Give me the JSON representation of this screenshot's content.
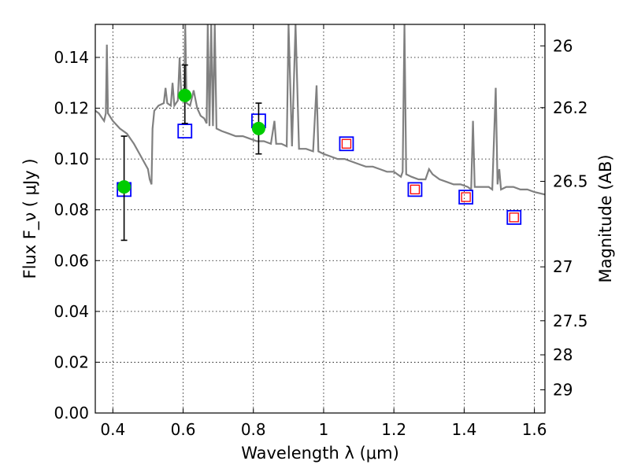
{
  "chart_data": {
    "type": "scatter",
    "title": "",
    "xlabel": "Wavelength  λ (μm)",
    "ylabel_left": "Flux  F_ν  ( μJy )",
    "ylabel_right": "Magnitude (AB)",
    "xlim": [
      0.35,
      1.63
    ],
    "ylim": [
      0.0,
      0.153
    ],
    "grid": true,
    "x_ticks": [
      0.4,
      0.6,
      0.8,
      1.0,
      1.2,
      1.4,
      1.6
    ],
    "x_tick_labels": [
      "0.4",
      "0.6",
      "0.8",
      "1",
      "1.2",
      "1.4",
      "1.6"
    ],
    "y_ticks": [
      0.0,
      0.02,
      0.04,
      0.06,
      0.08,
      0.1,
      0.12,
      0.14
    ],
    "y_tick_labels": [
      "0.00",
      "0.02",
      "0.04",
      "0.06",
      "0.08",
      "0.10",
      "0.12",
      "0.14"
    ],
    "right_ticks": [
      {
        "label": "26",
        "value": 26.0
      },
      {
        "label": "26.2",
        "value": 26.2
      },
      {
        "label": "26.5",
        "value": 26.5
      },
      {
        "label": "27",
        "value": 27.0
      },
      {
        "label": "27.5",
        "value": 27.5
      },
      {
        "label": "28",
        "value": 28.0
      },
      {
        "label": "29",
        "value": 29.0
      }
    ],
    "series": [
      {
        "name": "model spectrum",
        "kind": "line",
        "color": "#808080",
        "points": [
          [
            0.35,
            0.119
          ],
          [
            0.36,
            0.118
          ],
          [
            0.37,
            0.116
          ],
          [
            0.375,
            0.115
          ],
          [
            0.38,
            0.118
          ],
          [
            0.383,
            0.145
          ],
          [
            0.386,
            0.118
          ],
          [
            0.4,
            0.115
          ],
          [
            0.42,
            0.112
          ],
          [
            0.44,
            0.11
          ],
          [
            0.46,
            0.106
          ],
          [
            0.48,
            0.101
          ],
          [
            0.5,
            0.096
          ],
          [
            0.505,
            0.092
          ],
          [
            0.51,
            0.09
          ],
          [
            0.513,
            0.112
          ],
          [
            0.518,
            0.119
          ],
          [
            0.53,
            0.121
          ],
          [
            0.545,
            0.122
          ],
          [
            0.55,
            0.128
          ],
          [
            0.555,
            0.122
          ],
          [
            0.565,
            0.121
          ],
          [
            0.57,
            0.13
          ],
          [
            0.575,
            0.121
          ],
          [
            0.585,
            0.123
          ],
          [
            0.59,
            0.14
          ],
          [
            0.595,
            0.124
          ],
          [
            0.603,
            0.124
          ],
          [
            0.606,
            0.153
          ],
          [
            0.61,
            0.122
          ],
          [
            0.62,
            0.121
          ],
          [
            0.63,
            0.127
          ],
          [
            0.64,
            0.12
          ],
          [
            0.65,
            0.117
          ],
          [
            0.66,
            0.116
          ],
          [
            0.667,
            0.114
          ],
          [
            0.67,
            0.153
          ],
          [
            0.675,
            0.113
          ],
          [
            0.68,
            0.153
          ],
          [
            0.685,
            0.113
          ],
          [
            0.69,
            0.153
          ],
          [
            0.695,
            0.112
          ],
          [
            0.71,
            0.111
          ],
          [
            0.73,
            0.11
          ],
          [
            0.75,
            0.109
          ],
          [
            0.77,
            0.109
          ],
          [
            0.79,
            0.108
          ],
          [
            0.81,
            0.107
          ],
          [
            0.83,
            0.107
          ],
          [
            0.85,
            0.106
          ],
          [
            0.86,
            0.115
          ],
          [
            0.865,
            0.106
          ],
          [
            0.88,
            0.106
          ],
          [
            0.895,
            0.105
          ],
          [
            0.9,
            0.153
          ],
          [
            0.91,
            0.105
          ],
          [
            0.92,
            0.153
          ],
          [
            0.93,
            0.104
          ],
          [
            0.95,
            0.104
          ],
          [
            0.97,
            0.103
          ],
          [
            0.98,
            0.129
          ],
          [
            0.985,
            0.103
          ],
          [
            1.0,
            0.102
          ],
          [
            1.02,
            0.101
          ],
          [
            1.04,
            0.1
          ],
          [
            1.06,
            0.1
          ],
          [
            1.08,
            0.099
          ],
          [
            1.1,
            0.098
          ],
          [
            1.12,
            0.097
          ],
          [
            1.14,
            0.097
          ],
          [
            1.16,
            0.096
          ],
          [
            1.18,
            0.095
          ],
          [
            1.2,
            0.095
          ],
          [
            1.21,
            0.094
          ],
          [
            1.22,
            0.093
          ],
          [
            1.225,
            0.095
          ],
          [
            1.23,
            0.153
          ],
          [
            1.235,
            0.094
          ],
          [
            1.25,
            0.093
          ],
          [
            1.27,
            0.092
          ],
          [
            1.29,
            0.092
          ],
          [
            1.3,
            0.096
          ],
          [
            1.31,
            0.094
          ],
          [
            1.33,
            0.092
          ],
          [
            1.35,
            0.091
          ],
          [
            1.37,
            0.09
          ],
          [
            1.39,
            0.09
          ],
          [
            1.41,
            0.089
          ],
          [
            1.42,
            0.088
          ],
          [
            1.425,
            0.115
          ],
          [
            1.43,
            0.089
          ],
          [
            1.45,
            0.089
          ],
          [
            1.47,
            0.089
          ],
          [
            1.48,
            0.088
          ],
          [
            1.49,
            0.128
          ],
          [
            1.495,
            0.09
          ],
          [
            1.5,
            0.096
          ],
          [
            1.505,
            0.088
          ],
          [
            1.52,
            0.089
          ],
          [
            1.54,
            0.089
          ],
          [
            1.56,
            0.088
          ],
          [
            1.58,
            0.088
          ],
          [
            1.6,
            0.087
          ],
          [
            1.63,
            0.086
          ]
        ]
      },
      {
        "name": "model photometry (blue squares)",
        "kind": "square",
        "color": "#0000ff",
        "points": [
          [
            0.432,
            0.088
          ],
          [
            0.605,
            0.111
          ],
          [
            0.815,
            0.115
          ],
          [
            1.065,
            0.106
          ],
          [
            1.26,
            0.088
          ],
          [
            1.405,
            0.085
          ],
          [
            1.542,
            0.077
          ]
        ]
      },
      {
        "name": "observed photometry (red squares)",
        "kind": "square",
        "color": "#ff0000",
        "points": [
          [
            1.065,
            0.106
          ],
          [
            1.26,
            0.088
          ],
          [
            1.405,
            0.085
          ],
          [
            1.542,
            0.077
          ]
        ]
      },
      {
        "name": "observed photometry (green circles)",
        "kind": "circle",
        "color": "#00cc00",
        "points": [
          [
            0.432,
            0.089
          ],
          [
            0.605,
            0.125
          ],
          [
            0.815,
            0.112
          ]
        ],
        "errors": [
          [
            0.068,
            0.109
          ],
          [
            0.114,
            0.137
          ],
          [
            0.102,
            0.122
          ]
        ]
      }
    ]
  }
}
